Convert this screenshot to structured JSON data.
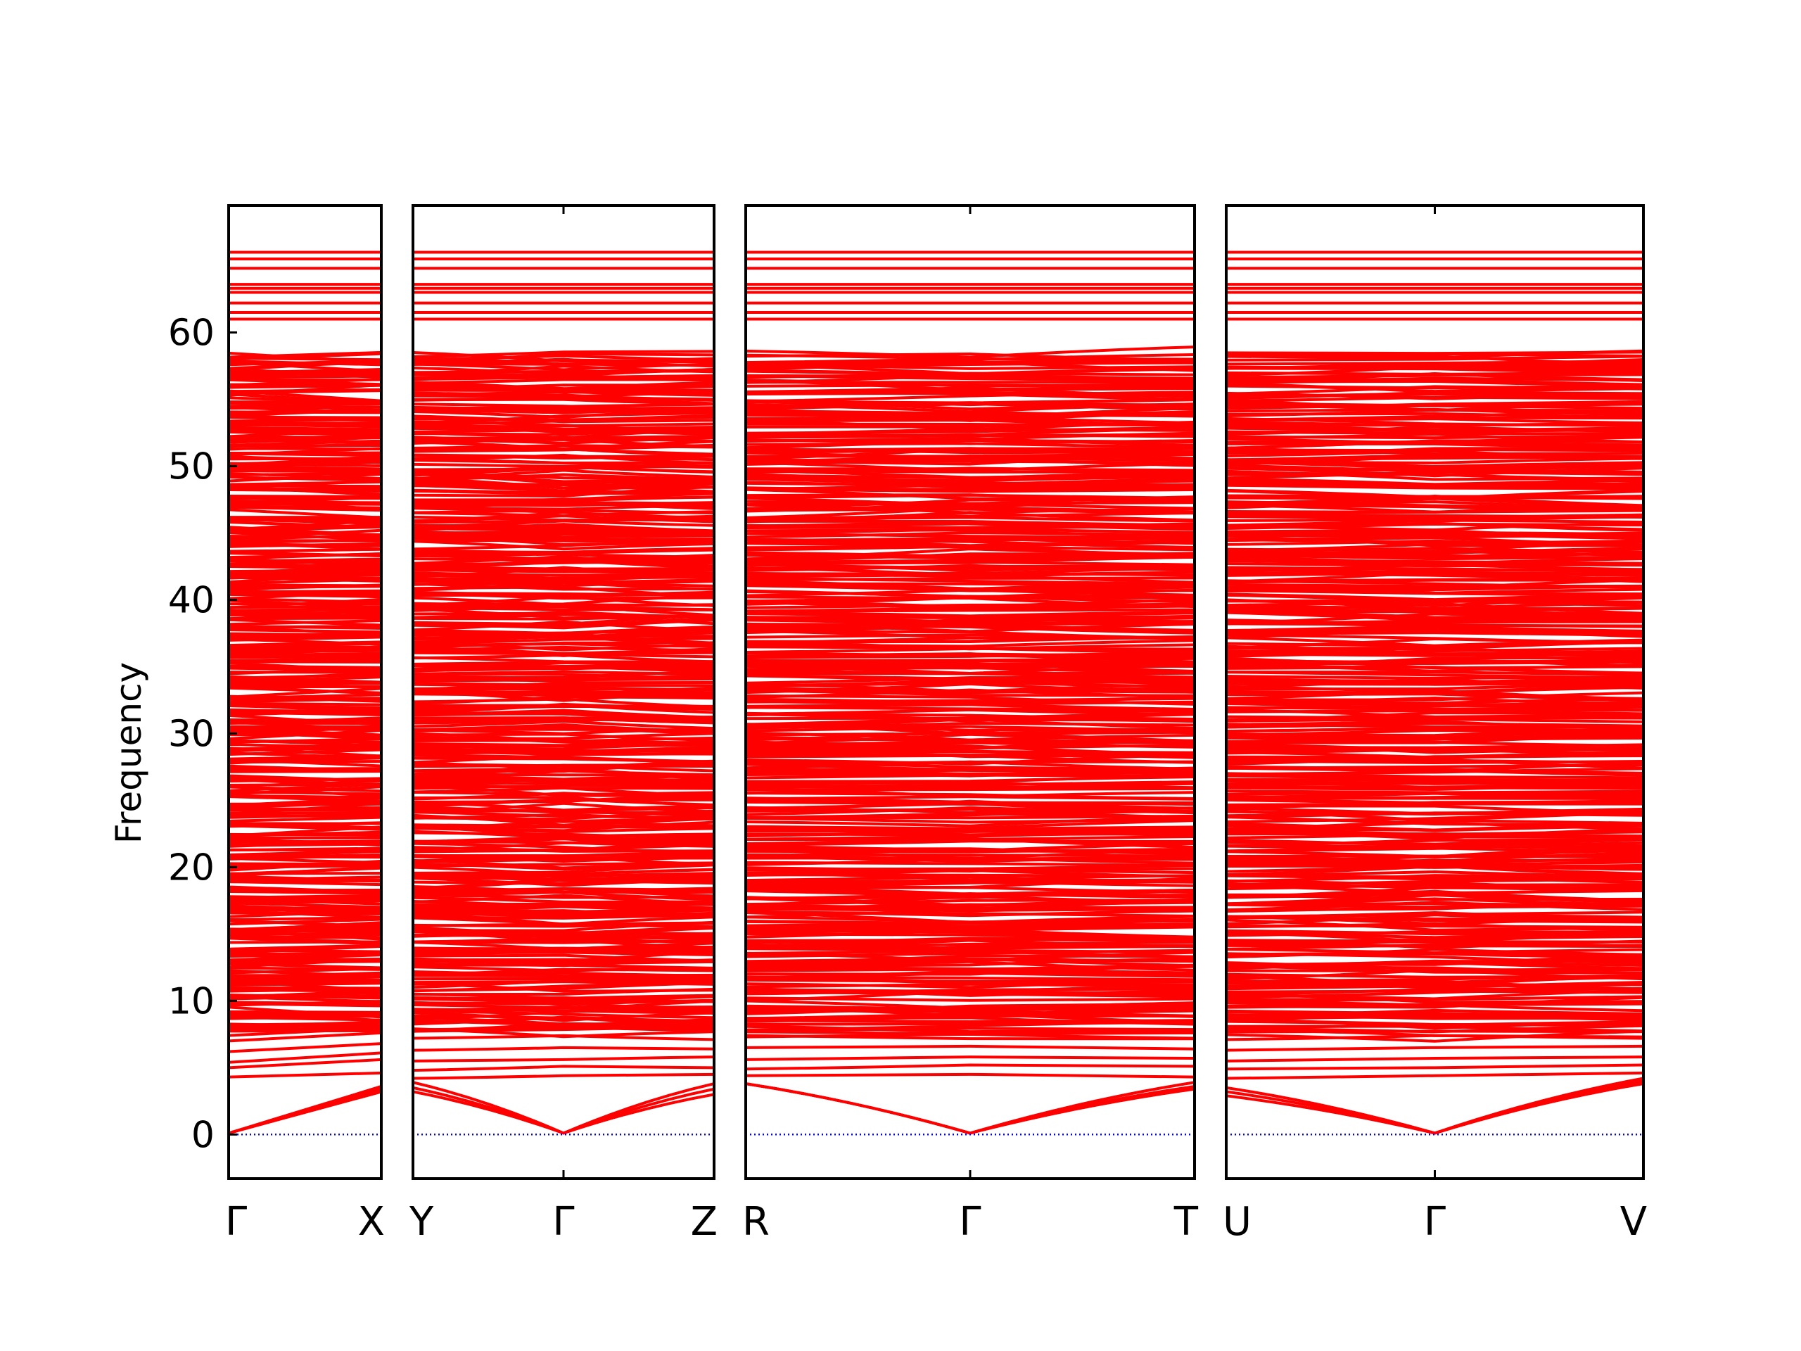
{
  "chart_data": {
    "type": "line",
    "title": "",
    "ylabel": "Frequency",
    "xlabel": "",
    "ylim": [
      -3.3,
      69.5
    ],
    "yticks": [
      0,
      10,
      20,
      30,
      40,
      50,
      60
    ],
    "grid": false,
    "colors": {
      "bands": "#ff0000",
      "zero_line": "#0000ff",
      "frame": "#000000"
    },
    "band_count": 420,
    "flat_top_modes": [
      61.0,
      61.5,
      62.2,
      63.0,
      63.3,
      63.6,
      64.8,
      65.5,
      66.0
    ],
    "panels": [
      {
        "start_label": "Γ",
        "end_label": "X",
        "mid_label": "",
        "acoustic": {
          "start": [
            0.1,
            0.1,
            0.1
          ],
          "end": [
            3.2,
            3.4,
            3.6
          ]
        },
        "optical_low": {
          "start": [
            4.3,
            5.0,
            5.4,
            6.2,
            7.0
          ],
          "end": [
            4.6,
            5.6,
            6.1,
            6.8,
            7.6
          ]
        }
      },
      {
        "start_label": "Y",
        "end_label": "Z",
        "mid_label": "Γ",
        "acoustic": {
          "start": [
            3.2,
            3.5,
            3.9
          ],
          "mid": [
            0.1,
            0.1,
            0.1
          ],
          "end": [
            3.0,
            3.4,
            3.8
          ]
        },
        "optical_low": {
          "start": [
            4.2,
            4.8,
            5.5,
            6.3,
            7.2
          ],
          "mid": [
            4.4,
            5.1,
            5.6,
            6.5,
            7.4
          ],
          "end": [
            4.5,
            5.0,
            5.8,
            6.4,
            7.1
          ]
        }
      },
      {
        "start_label": "R",
        "end_label": "T",
        "mid_label": "Γ",
        "acoustic": {
          "start": [
            3.8,
            3.8,
            3.8
          ],
          "mid": [
            0.1,
            0.1,
            0.1
          ],
          "end": [
            3.4,
            3.6,
            3.9
          ]
        },
        "optical_low": {
          "start": [
            4.4,
            4.9,
            5.6,
            6.5,
            7.3
          ],
          "mid": [
            4.5,
            5.2,
            5.8,
            6.6,
            7.5
          ],
          "end": [
            4.3,
            5.1,
            5.7,
            6.4,
            7.2
          ]
        }
      },
      {
        "start_label": "U",
        "end_label": "V",
        "mid_label": "Γ",
        "acoustic": {
          "start": [
            2.9,
            3.2,
            3.5
          ],
          "mid": [
            0.1,
            0.1,
            0.1
          ],
          "end": [
            3.8,
            4.0,
            4.2
          ]
        },
        "optical_low": {
          "start": [
            4.2,
            4.9,
            5.5,
            6.3,
            7.1
          ],
          "mid": [
            4.4,
            5.0,
            5.7,
            6.5,
            7.4
          ],
          "end": [
            4.6,
            5.2,
            5.8,
            6.6,
            7.3
          ]
        }
      }
    ]
  }
}
